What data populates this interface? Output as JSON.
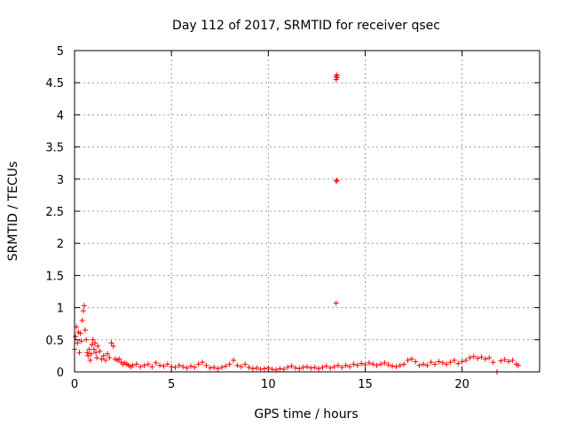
{
  "chart_data": {
    "type": "scatter",
    "title": "Day 112 of 2017, SRMTID for receiver qsec",
    "xlabel": "GPS time / hours",
    "ylabel": "SRMTID / TECUs",
    "xlim": [
      0,
      24
    ],
    "ylim": [
      0,
      5
    ],
    "x_ticks": [
      0,
      5,
      10,
      15,
      20
    ],
    "x_tick_labels": [
      "0",
      "5",
      "10",
      "15",
      "20"
    ],
    "y_ticks": [
      0,
      0.5,
      1,
      1.5,
      2,
      2.5,
      3,
      3.5,
      4,
      4.5,
      5
    ],
    "y_tick_labels": [
      "0",
      "0.5",
      "1",
      "1.5",
      "2",
      "2.5",
      "3",
      "3.5",
      "4",
      "4.5",
      "5"
    ],
    "grid": true,
    "marker": "+",
    "color": "#ff0000",
    "series": [
      {
        "name": "SRMTID",
        "points": [
          [
            0.0,
            0.35
          ],
          [
            0.05,
            0.55
          ],
          [
            0.1,
            0.7
          ],
          [
            0.15,
            0.45
          ],
          [
            0.2,
            0.62
          ],
          [
            0.25,
            0.3
          ],
          [
            0.3,
            0.6
          ],
          [
            0.35,
            0.48
          ],
          [
            0.4,
            0.8
          ],
          [
            0.45,
            0.95
          ],
          [
            0.5,
            1.03
          ],
          [
            0.55,
            0.65
          ],
          [
            0.6,
            0.5
          ],
          [
            0.65,
            0.3
          ],
          [
            0.7,
            0.25
          ],
          [
            0.75,
            0.35
          ],
          [
            0.8,
            0.18
          ],
          [
            0.85,
            0.28
          ],
          [
            0.9,
            0.42
          ],
          [
            0.95,
            0.5
          ],
          [
            1.0,
            0.35
          ],
          [
            1.05,
            0.45
          ],
          [
            1.1,
            0.3
          ],
          [
            1.15,
            0.22
          ],
          [
            1.2,
            0.4
          ],
          [
            1.3,
            0.32
          ],
          [
            1.4,
            0.2
          ],
          [
            1.5,
            0.25
          ],
          [
            1.6,
            0.18
          ],
          [
            1.7,
            0.28
          ],
          [
            1.8,
            0.22
          ],
          [
            1.9,
            0.45
          ],
          [
            2.0,
            0.4
          ],
          [
            2.1,
            0.2
          ],
          [
            2.2,
            0.18
          ],
          [
            2.3,
            0.2
          ],
          [
            2.4,
            0.15
          ],
          [
            2.5,
            0.12
          ],
          [
            2.6,
            0.14
          ],
          [
            2.7,
            0.12
          ],
          [
            2.8,
            0.1
          ],
          [
            2.9,
            0.08
          ],
          [
            3.0,
            0.1
          ],
          [
            3.2,
            0.12
          ],
          [
            3.4,
            0.08
          ],
          [
            3.6,
            0.1
          ],
          [
            3.8,
            0.12
          ],
          [
            4.0,
            0.08
          ],
          [
            4.2,
            0.14
          ],
          [
            4.4,
            0.1
          ],
          [
            4.6,
            0.09
          ],
          [
            4.8,
            0.12
          ],
          [
            5.0,
            0.08
          ],
          [
            5.2,
            0.07
          ],
          [
            5.4,
            0.1
          ],
          [
            5.6,
            0.08
          ],
          [
            5.8,
            0.06
          ],
          [
            6.0,
            0.09
          ],
          [
            6.2,
            0.07
          ],
          [
            6.4,
            0.12
          ],
          [
            6.6,
            0.15
          ],
          [
            6.8,
            0.1
          ],
          [
            7.0,
            0.06
          ],
          [
            7.2,
            0.07
          ],
          [
            7.4,
            0.05
          ],
          [
            7.6,
            0.07
          ],
          [
            7.8,
            0.09
          ],
          [
            8.0,
            0.12
          ],
          [
            8.2,
            0.18
          ],
          [
            8.4,
            0.1
          ],
          [
            8.6,
            0.08
          ],
          [
            8.8,
            0.12
          ],
          [
            9.0,
            0.07
          ],
          [
            9.2,
            0.05
          ],
          [
            9.4,
            0.06
          ],
          [
            9.6,
            0.04
          ],
          [
            9.8,
            0.05
          ],
          [
            10.0,
            0.06
          ],
          [
            10.2,
            0.04
          ],
          [
            10.4,
            0.03
          ],
          [
            10.6,
            0.05
          ],
          [
            10.8,
            0.04
          ],
          [
            11.0,
            0.07
          ],
          [
            11.2,
            0.09
          ],
          [
            11.4,
            0.06
          ],
          [
            11.6,
            0.05
          ],
          [
            11.8,
            0.07
          ],
          [
            12.0,
            0.08
          ],
          [
            12.2,
            0.06
          ],
          [
            12.4,
            0.07
          ],
          [
            12.6,
            0.05
          ],
          [
            12.8,
            0.07
          ],
          [
            13.0,
            0.09
          ],
          [
            13.2,
            0.06
          ],
          [
            13.4,
            0.08
          ],
          [
            13.5,
            1.07
          ],
          [
            13.5,
            4.55
          ],
          [
            13.5,
            4.6
          ],
          [
            13.55,
            4.62
          ],
          [
            13.55,
            4.58
          ],
          [
            13.5,
            2.97
          ],
          [
            13.55,
            2.98
          ],
          [
            13.6,
            0.1
          ],
          [
            13.8,
            0.07
          ],
          [
            14.0,
            0.1
          ],
          [
            14.2,
            0.08
          ],
          [
            14.4,
            0.12
          ],
          [
            14.6,
            0.1
          ],
          [
            14.8,
            0.13
          ],
          [
            15.0,
            0.11
          ],
          [
            15.2,
            0.14
          ],
          [
            15.4,
            0.12
          ],
          [
            15.6,
            0.1
          ],
          [
            15.8,
            0.12
          ],
          [
            16.0,
            0.14
          ],
          [
            16.2,
            0.11
          ],
          [
            16.4,
            0.09
          ],
          [
            16.6,
            0.08
          ],
          [
            16.8,
            0.1
          ],
          [
            17.0,
            0.12
          ],
          [
            17.2,
            0.18
          ],
          [
            17.4,
            0.2
          ],
          [
            17.6,
            0.16
          ],
          [
            17.8,
            0.1
          ],
          [
            18.0,
            0.12
          ],
          [
            18.2,
            0.1
          ],
          [
            18.4,
            0.15
          ],
          [
            18.6,
            0.12
          ],
          [
            18.8,
            0.16
          ],
          [
            19.0,
            0.14
          ],
          [
            19.2,
            0.12
          ],
          [
            19.4,
            0.15
          ],
          [
            19.6,
            0.18
          ],
          [
            19.8,
            0.13
          ],
          [
            20.0,
            0.16
          ],
          [
            20.2,
            0.18
          ],
          [
            20.4,
            0.22
          ],
          [
            20.6,
            0.24
          ],
          [
            20.8,
            0.21
          ],
          [
            21.0,
            0.23
          ],
          [
            21.2,
            0.2
          ],
          [
            21.4,
            0.22
          ],
          [
            21.6,
            0.15
          ],
          [
            21.8,
            0.0
          ],
          [
            22.0,
            0.17
          ],
          [
            22.2,
            0.19
          ],
          [
            22.4,
            0.16
          ],
          [
            22.6,
            0.18
          ],
          [
            22.8,
            0.12
          ],
          [
            22.9,
            0.1
          ]
        ]
      }
    ]
  }
}
